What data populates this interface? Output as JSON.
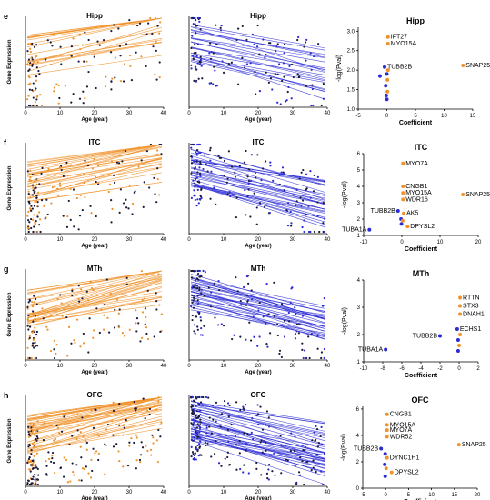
{
  "colors": {
    "orange": "#f0922b",
    "blue": "#2b2bd6",
    "dark": "#1a1a3a"
  },
  "rows": [
    {
      "panel_letter": "e",
      "region": "Hipp",
      "ylabel": "Gene Expression",
      "xlabel": "Age (year)",
      "x_ticks": [
        "0",
        "10",
        "20",
        "30",
        "40"
      ],
      "volcano": {
        "title": "Hipp",
        "xlabel": "Coefficient",
        "ylabel": "-log(Pval)",
        "x_ticks": [
          "-5",
          "0",
          "5",
          "10",
          "15"
        ],
        "y_ticks": [
          "1.0",
          "1.5",
          "2.0",
          "2.5",
          "3.0"
        ],
        "xlim": [
          -5,
          15
        ],
        "ylim": [
          1.0,
          3.1
        ],
        "points": [
          {
            "label": "IFT27",
            "x": 0.2,
            "y": 2.85,
            "c": "orange"
          },
          {
            "label": "MYO15A",
            "x": 0.2,
            "y": 2.68,
            "c": "orange"
          },
          {
            "label": "SNAP25",
            "x": 13.3,
            "y": 2.12,
            "c": "orange"
          },
          {
            "label": "TUBB2B",
            "x": -0.4,
            "y": 2.08,
            "c": "blue"
          },
          {
            "label": "",
            "x": 0.0,
            "y": 1.9,
            "c": "blue"
          },
          {
            "label": "",
            "x": 0.1,
            "y": 1.75,
            "c": "orange"
          },
          {
            "label": "",
            "x": -0.2,
            "y": 1.6,
            "c": "blue"
          },
          {
            "label": "",
            "x": 0.1,
            "y": 1.45,
            "c": "orange"
          },
          {
            "label": "",
            "x": -0.1,
            "y": 1.35,
            "c": "blue"
          },
          {
            "label": "",
            "x": 0.0,
            "y": 1.25,
            "c": "blue"
          },
          {
            "label": "",
            "x": 0.2,
            "y": 2.0,
            "c": "orange"
          },
          {
            "label": "",
            "x": -1.2,
            "y": 1.85,
            "c": "blue"
          }
        ]
      }
    },
    {
      "panel_letter": "f",
      "region": "ITC",
      "ylabel": "Gene Expression",
      "xlabel": "Age (year)",
      "x_ticks": [
        "0",
        "10",
        "20",
        "30",
        "40"
      ],
      "volcano": {
        "title": "ITC",
        "xlabel": "Coefficient",
        "ylabel": "-log(Pval)",
        "x_ticks": [
          "-10",
          "0",
          "10",
          "20"
        ],
        "y_ticks": [
          "1",
          "2",
          "3",
          "4",
          "5",
          "6"
        ],
        "xlim": [
          -10,
          20
        ],
        "ylim": [
          1,
          6
        ],
        "points": [
          {
            "label": "MYO7A",
            "x": 0.3,
            "y": 5.4,
            "c": "orange"
          },
          {
            "label": "CNGB1",
            "x": 0.3,
            "y": 4.0,
            "c": "orange"
          },
          {
            "label": "MYO15A",
            "x": 0.3,
            "y": 3.6,
            "c": "orange"
          },
          {
            "label": "WDR16",
            "x": 0.3,
            "y": 3.2,
            "c": "orange"
          },
          {
            "label": "SNAP25",
            "x": 16.0,
            "y": 3.5,
            "c": "orange"
          },
          {
            "label": "TUBB2B",
            "x": -1.0,
            "y": 2.5,
            "c": "blue"
          },
          {
            "label": "AK5",
            "x": 0.5,
            "y": 2.35,
            "c": "orange"
          },
          {
            "label": "DPYSL2",
            "x": 1.5,
            "y": 1.55,
            "c": "orange"
          },
          {
            "label": "TUBA1A",
            "x": -8.5,
            "y": 1.35,
            "c": "blue"
          },
          {
            "label": "",
            "x": -0.2,
            "y": 2.0,
            "c": "blue"
          },
          {
            "label": "",
            "x": -0.1,
            "y": 1.7,
            "c": "blue"
          },
          {
            "label": "",
            "x": 0.2,
            "y": 1.9,
            "c": "orange"
          }
        ]
      }
    },
    {
      "panel_letter": "g",
      "region": "MTh",
      "ylabel": "Gene Expression",
      "xlabel": "Age (year)",
      "x_ticks": [
        "0",
        "10",
        "20",
        "30",
        "40"
      ],
      "volcano": {
        "title": "MTh",
        "xlabel": "Coefficient",
        "ylabel": "-log(Pval)",
        "x_ticks": [
          "-10",
          "-8",
          "-6",
          "-4",
          "-2",
          "0",
          "2"
        ],
        "y_ticks": [
          "1",
          "2",
          "3",
          "4"
        ],
        "xlim": [
          -10,
          2
        ],
        "ylim": [
          1,
          4
        ],
        "points": [
          {
            "label": "RTTN",
            "x": 0.1,
            "y": 3.35,
            "c": "orange"
          },
          {
            "label": "STX3",
            "x": 0.1,
            "y": 3.05,
            "c": "orange"
          },
          {
            "label": "DNAH1",
            "x": 0.1,
            "y": 2.75,
            "c": "orange"
          },
          {
            "label": "ECHS1",
            "x": -0.2,
            "y": 2.2,
            "c": "blue"
          },
          {
            "label": "TUBB2B",
            "x": -2.0,
            "y": 1.95,
            "c": "blue"
          },
          {
            "label": "TUBA1A",
            "x": -7.7,
            "y": 1.45,
            "c": "blue"
          },
          {
            "label": "",
            "x": -0.1,
            "y": 1.8,
            "c": "blue"
          },
          {
            "label": "",
            "x": 0.0,
            "y": 1.6,
            "c": "orange"
          },
          {
            "label": "",
            "x": -0.1,
            "y": 1.4,
            "c": "blue"
          },
          {
            "label": "",
            "x": 0.1,
            "y": 2.0,
            "c": "orange"
          }
        ]
      }
    },
    {
      "panel_letter": "h",
      "region": "OFC",
      "ylabel": "Gene Expression",
      "xlabel": "Age (year)",
      "x_ticks": [
        "0",
        "10",
        "20",
        "30",
        "40"
      ],
      "volcano": {
        "title": "OFC",
        "xlabel": "Coefficient",
        "ylabel": "-log(Pval)",
        "x_ticks": [
          "-5",
          "0",
          "5",
          "10",
          "15",
          "20"
        ],
        "y_ticks": [
          "0",
          "2",
          "4",
          "6"
        ],
        "xlim": [
          -5,
          20
        ],
        "ylim": [
          0,
          6.2
        ],
        "points": [
          {
            "label": "CNGB1",
            "x": 0.3,
            "y": 5.6,
            "c": "orange"
          },
          {
            "label": "MYO15A",
            "x": 0.3,
            "y": 4.8,
            "c": "orange"
          },
          {
            "label": "MYO7A",
            "x": 0.3,
            "y": 4.4,
            "c": "orange"
          },
          {
            "label": "WDR52",
            "x": 0.3,
            "y": 3.9,
            "c": "orange"
          },
          {
            "label": "SNAP25",
            "x": 16.0,
            "y": 3.3,
            "c": "orange"
          },
          {
            "label": "TUBB2B",
            "x": -1.0,
            "y": 3.0,
            "c": "blue"
          },
          {
            "label": "DYNC1H1",
            "x": 0.3,
            "y": 2.3,
            "c": "orange"
          },
          {
            "label": "DPYSL2",
            "x": 1.3,
            "y": 1.2,
            "c": "orange"
          },
          {
            "label": "",
            "x": -0.1,
            "y": 2.6,
            "c": "blue"
          },
          {
            "label": "",
            "x": -0.2,
            "y": 1.8,
            "c": "blue"
          },
          {
            "label": "",
            "x": 0.1,
            "y": 1.5,
            "c": "orange"
          },
          {
            "label": "",
            "x": -0.1,
            "y": 0.9,
            "c": "blue"
          }
        ]
      }
    }
  ],
  "chart_data": [
    {
      "type": "line",
      "region": "Hipp",
      "direction": "increasing",
      "color": "#f0922b",
      "x_range": [
        0,
        40
      ],
      "xlabel": "Age (year)",
      "ylabel": "Gene Expression"
    },
    {
      "type": "line",
      "region": "Hipp",
      "direction": "decreasing",
      "color": "#2b2bd6",
      "x_range": [
        0,
        40
      ],
      "xlabel": "Age (year)"
    },
    {
      "type": "scatter",
      "region": "Hipp",
      "title": "Hipp",
      "xlabel": "Coefficient",
      "ylabel": "-log(Pval)"
    },
    {
      "type": "line",
      "region": "ITC",
      "direction": "increasing",
      "color": "#f0922b",
      "x_range": [
        0,
        40
      ]
    },
    {
      "type": "line",
      "region": "ITC",
      "direction": "decreasing",
      "color": "#2b2bd6",
      "x_range": [
        0,
        40
      ]
    },
    {
      "type": "scatter",
      "region": "ITC",
      "title": "ITC"
    },
    {
      "type": "line",
      "region": "MTh",
      "direction": "increasing",
      "color": "#f0922b",
      "x_range": [
        0,
        40
      ]
    },
    {
      "type": "line",
      "region": "MTh",
      "direction": "decreasing",
      "color": "#2b2bd6",
      "x_range": [
        0,
        40
      ]
    },
    {
      "type": "scatter",
      "region": "MTh",
      "title": "MTh"
    },
    {
      "type": "line",
      "region": "OFC",
      "direction": "increasing",
      "color": "#f0922b",
      "x_range": [
        0,
        40
      ]
    },
    {
      "type": "line",
      "region": "OFC",
      "direction": "decreasing",
      "color": "#2b2bd6",
      "x_range": [
        0,
        40
      ]
    },
    {
      "type": "scatter",
      "region": "OFC",
      "title": "OFC"
    }
  ]
}
